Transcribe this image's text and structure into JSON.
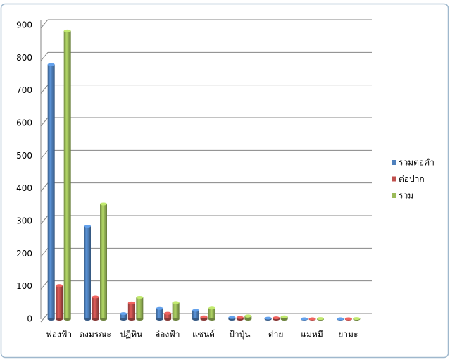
{
  "chart_data": {
    "type": "bar",
    "categories": [
      "ฟองฟ้า",
      "ดงมรณะ",
      "ปฏิทิน",
      "ล่องฟ้า",
      "แซนด์",
      "ป้าปุ่น",
      "ต่าย",
      "แม่หมี",
      "ยามะ"
    ],
    "series": [
      {
        "name": "รวมต่อคำ",
        "color": "#4f81bd",
        "values": [
          780,
          285,
          17,
          33,
          27,
          5,
          3,
          1,
          1
        ]
      },
      {
        "name": "ต่อปาก",
        "color": "#c0504d",
        "values": [
          103,
          68,
          50,
          18,
          7,
          5,
          4,
          1,
          1
        ]
      },
      {
        "name": "รวม",
        "color": "#9bbb59",
        "values": [
          883,
          353,
          67,
          51,
          34,
          10,
          7,
          2,
          2
        ]
      }
    ],
    "ylim": [
      0,
      900
    ],
    "yticks": [
      0,
      100,
      200,
      300,
      400,
      500,
      600,
      700,
      800,
      900
    ],
    "grid": true,
    "legend": "right"
  }
}
